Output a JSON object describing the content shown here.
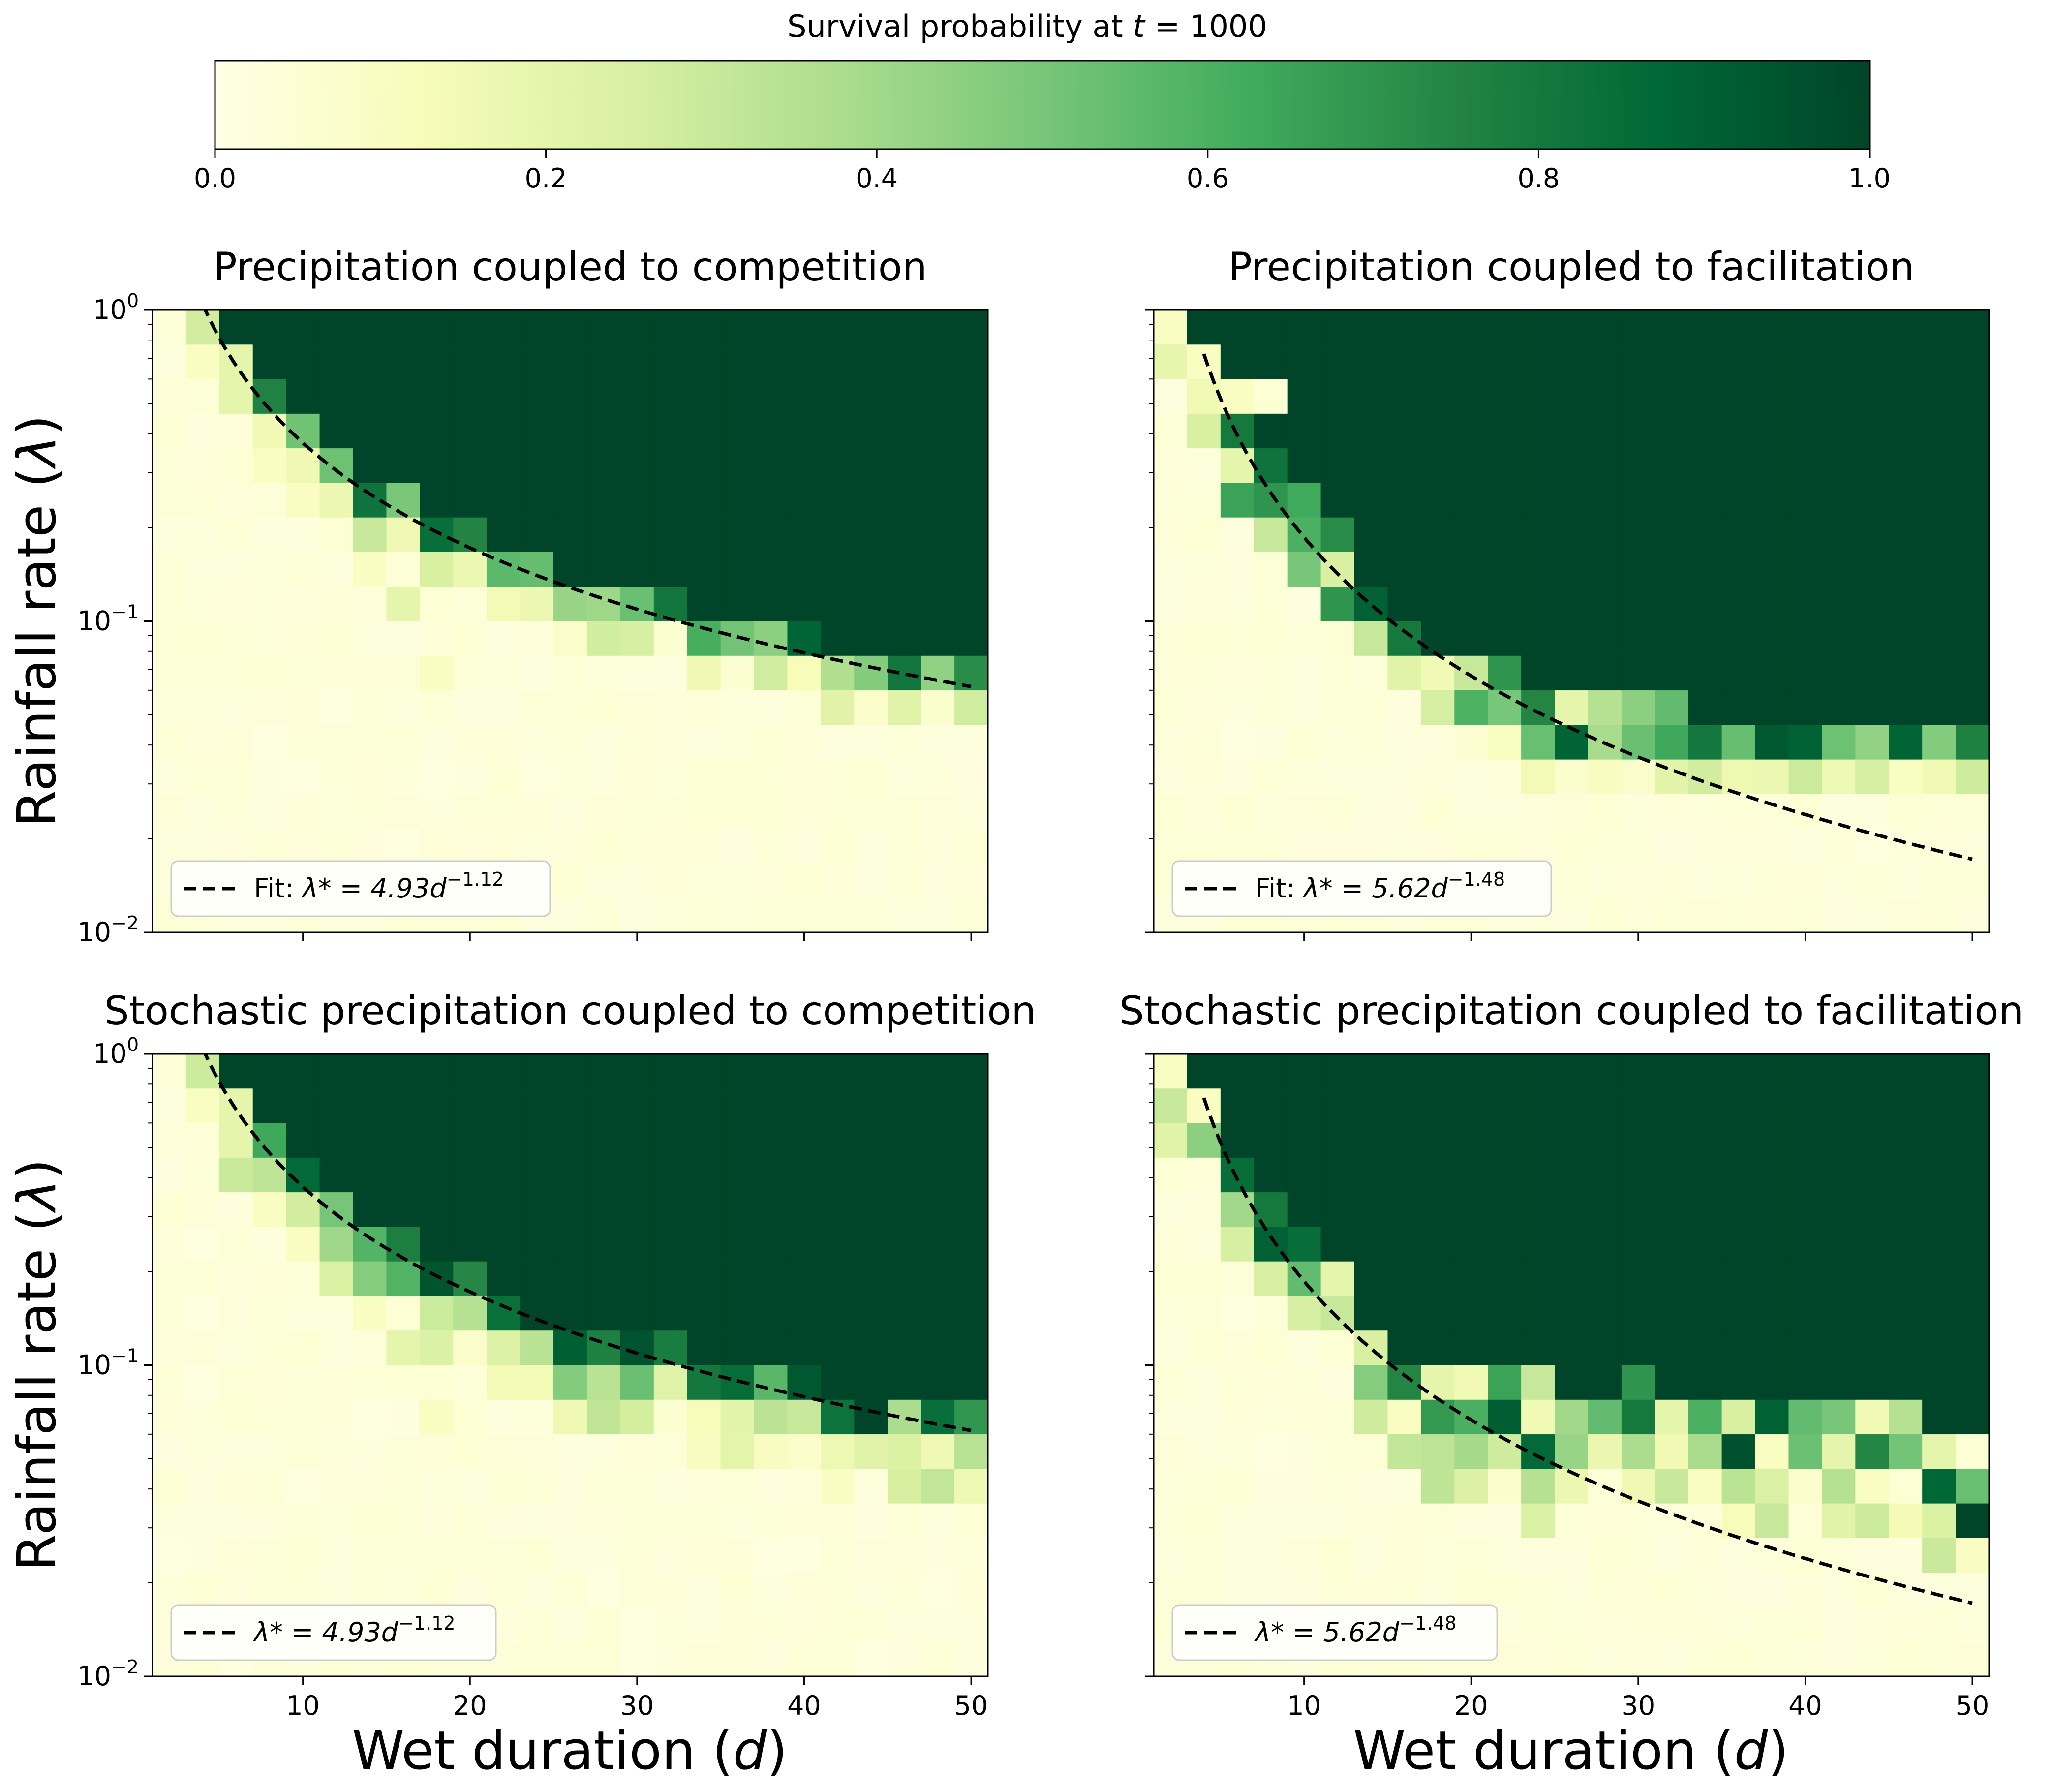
{
  "colorbar": {
    "label_prefix": "Survival probability at ",
    "label_var": "t",
    "label_suffix": " = 1000",
    "ticks": [
      "0.0",
      "0.2",
      "0.4",
      "0.6",
      "0.8",
      "1.0"
    ],
    "range": [
      0,
      1
    ],
    "colormap_stops": [
      "#ffffe5",
      "#f7fcb9",
      "#d9f0a3",
      "#addd8e",
      "#78c679",
      "#41ab5d",
      "#238443",
      "#006837",
      "#004529"
    ]
  },
  "axes_text": {
    "ylabel_text": "Rainfall rate (",
    "ylabel_sym": "λ",
    "ylabel_close": ")",
    "xlabel_text": "Wet duration (",
    "xlabel_sym": "d",
    "xlabel_close": ")",
    "y_tick_base": "10",
    "y_tick_exps": [
      "0",
      "−1",
      "−2"
    ],
    "x_ticks": [
      "10",
      "20",
      "30",
      "40",
      "50"
    ]
  },
  "chart_data": [
    {
      "type": "heatmap",
      "title": "Precipitation coupled to competition",
      "x_range": [
        1,
        51
      ],
      "ylim": [
        0.01,
        1
      ],
      "y_scale": "log",
      "grid": false,
      "legend_position": "lower-left",
      "fit": {
        "a": 4.93,
        "b": -1.12,
        "legend_prefix": "Fit: ",
        "legend_lhs": "λ* = 4.93",
        "legend_var": "d",
        "legend_exp": "−1.12",
        "x_from": 4
      },
      "stochastic": false,
      "outside": [
        [
          2,
          1,
          0.1
        ],
        [
          3,
          1,
          0.2
        ],
        [
          3,
          2,
          0.2
        ],
        [
          4,
          4,
          0.1
        ],
        [
          5,
          5,
          0.1
        ],
        [
          7,
          7,
          0.1
        ],
        [
          8,
          8,
          0.2
        ],
        [
          9,
          10,
          0.1
        ]
      ]
    },
    {
      "type": "heatmap",
      "title": "Precipitation coupled to facilitation",
      "x_range": [
        1,
        51
      ],
      "ylim": [
        0.01,
        1
      ],
      "y_scale": "log",
      "grid": false,
      "legend_position": "lower-left",
      "fit": {
        "a": 5.62,
        "b": -1.48,
        "legend_prefix": "Fit: ",
        "legend_lhs": "λ* = 5.62",
        "legend_var": "d",
        "legend_exp": "−1.48",
        "x_from": 4
      },
      "stochastic": false,
      "boundary": [
        [
          1,
          0
        ],
        [
          2,
          2
        ],
        [
          3,
          3
        ],
        [
          4,
          4
        ],
        [
          5,
          5
        ],
        [
          6,
          6
        ],
        [
          7,
          8
        ],
        [
          8,
          9
        ],
        [
          9,
          10
        ],
        [
          10,
          11
        ],
        [
          11,
          11
        ],
        [
          12,
          12
        ],
        [
          13,
          12
        ],
        [
          14,
          12
        ],
        [
          15,
          12
        ],
        [
          16,
          12
        ],
        [
          17,
          12
        ],
        [
          18,
          12
        ],
        [
          19,
          12
        ],
        [
          20,
          12
        ],
        [
          21,
          12
        ],
        [
          22,
          12
        ],
        [
          23,
          12
        ],
        [
          24,
          12
        ],
        [
          25,
          12
        ]
      ],
      "inside": [
        [
          2,
          2,
          0.15
        ],
        [
          2,
          3,
          0.25
        ],
        [
          3,
          3,
          0.8
        ],
        [
          3,
          4,
          0.2
        ],
        [
          3,
          5,
          0.65
        ],
        [
          4,
          5,
          0.7
        ],
        [
          4,
          6,
          0.3
        ],
        [
          5,
          6,
          0.6
        ],
        [
          5,
          7,
          0.5
        ],
        [
          6,
          7,
          0.25
        ],
        [
          6,
          8,
          0.7
        ],
        [
          7,
          8,
          0.9
        ],
        [
          7,
          9,
          0.3
        ],
        [
          8,
          9,
          0.8
        ],
        [
          9,
          10,
          0.15
        ],
        [
          10,
          10,
          0.3
        ],
        [
          11,
          10,
          0.7
        ],
        [
          11,
          11,
          0.5
        ],
        [
          12,
          11,
          0.75
        ],
        [
          13,
          11,
          0.2
        ],
        [
          14,
          11,
          0.35
        ],
        [
          15,
          11,
          0.45
        ],
        [
          16,
          11,
          0.55
        ]
      ],
      "outside": [
        [
          1,
          0,
          0.1
        ],
        [
          2,
          1,
          0.1
        ],
        [
          3,
          2,
          0.1
        ],
        [
          4,
          2,
          0.05
        ]
      ]
    },
    {
      "type": "heatmap",
      "title": "Stochastic precipitation coupled to competition",
      "x_range": [
        1,
        51
      ],
      "ylim": [
        0.01,
        1
      ],
      "y_scale": "log",
      "grid": false,
      "legend_position": "lower-left",
      "fit": {
        "a": 4.93,
        "b": -1.12,
        "legend_prefix": "",
        "legend_lhs": "λ* = 4.93",
        "legend_var": "d",
        "legend_exp": "−1.12",
        "x_from": 4
      },
      "stochastic": true,
      "outside": [
        [
          2,
          1,
          0.1
        ],
        [
          3,
          1,
          0.2
        ],
        [
          3,
          2,
          0.2
        ],
        [
          4,
          4,
          0.1
        ],
        [
          5,
          5,
          0.1
        ],
        [
          7,
          7,
          0.1
        ],
        [
          8,
          8,
          0.2
        ],
        [
          9,
          10,
          0.1
        ]
      ]
    },
    {
      "type": "heatmap",
      "title": "Stochastic precipitation coupled to facilitation",
      "x_range": [
        1,
        51
      ],
      "ylim": [
        0.01,
        1
      ],
      "y_scale": "log",
      "grid": false,
      "legend_position": "lower-left",
      "fit": {
        "a": 5.62,
        "b": -1.48,
        "legend_prefix": "",
        "legend_lhs": "λ* = 5.62",
        "legend_var": "d",
        "legend_exp": "−1.48",
        "x_from": 4
      },
      "stochastic": true,
      "boundary": [
        [
          1,
          0
        ],
        [
          2,
          1
        ],
        [
          3,
          3
        ],
        [
          4,
          4
        ],
        [
          5,
          5
        ],
        [
          6,
          6
        ],
        [
          7,
          8
        ],
        [
          8,
          9
        ],
        [
          9,
          10
        ],
        [
          10,
          10
        ],
        [
          11,
          10
        ],
        [
          12,
          11
        ],
        [
          13,
          10
        ],
        [
          14,
          10
        ],
        [
          15,
          10
        ],
        [
          16,
          10
        ],
        [
          17,
          10
        ],
        [
          18,
          11
        ],
        [
          19,
          11
        ],
        [
          20,
          10
        ],
        [
          21,
          11
        ],
        [
          22,
          11
        ],
        [
          23,
          11
        ],
        [
          24,
          12
        ],
        [
          25,
          12
        ]
      ],
      "inside": [
        [
          2,
          1,
          0.35
        ],
        [
          2,
          2,
          0.45
        ],
        [
          3,
          3,
          0.85
        ],
        [
          3,
          4,
          0.4
        ],
        [
          4,
          4,
          0.8
        ],
        [
          4,
          5,
          0.9
        ],
        [
          5,
          5,
          0.85
        ],
        [
          5,
          6,
          0.55
        ],
        [
          6,
          7,
          0.3
        ],
        [
          6,
          6,
          0.2
        ],
        [
          7,
          8,
          0.25
        ],
        [
          8,
          9,
          0.75
        ],
        [
          9,
          9,
          0.2
        ],
        [
          10,
          9,
          0.15
        ],
        [
          11,
          9,
          0.65
        ],
        [
          12,
          9,
          0.3
        ],
        [
          13,
          10,
          0.4
        ],
        [
          14,
          10,
          0.55
        ],
        [
          15,
          9,
          0.7
        ],
        [
          16,
          10,
          0.2
        ],
        [
          17,
          10,
          0.6
        ],
        [
          18,
          10,
          0.25
        ],
        [
          19,
          10,
          0.9
        ],
        [
          20,
          10,
          0.55
        ],
        [
          21,
          10,
          0.5
        ],
        [
          22,
          10,
          0.15
        ],
        [
          23,
          10,
          0.35
        ],
        [
          24,
          11,
          0.2
        ],
        [
          25,
          11,
          0.05
        ],
        [
          8,
          10,
          0.1
        ],
        [
          12,
          10,
          0.15
        ],
        [
          16,
          11,
          0.15
        ],
        [
          19,
          11,
          0.1
        ],
        [
          21,
          11,
          0.2
        ],
        [
          25,
          13,
          1.0
        ],
        [
          17,
          12,
          0.1
        ],
        [
          22,
          12,
          0.1
        ],
        [
          23,
          12,
          0.05
        ]
      ],
      "outside": [
        [
          1,
          0,
          0.1
        ],
        [
          2,
          1,
          0.1
        ]
      ]
    }
  ]
}
